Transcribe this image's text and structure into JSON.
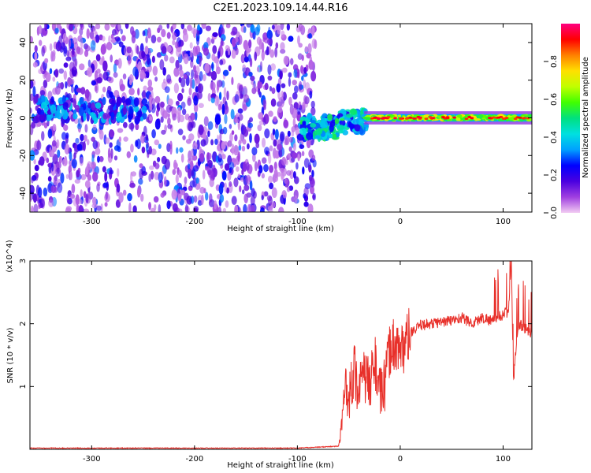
{
  "figure_title": "C2E1.2023.109.14.44.R16",
  "chart_data": [
    {
      "type": "heatmap",
      "xlabel": "Height of straight line (km)",
      "ylabel": "Frequency (Hz)",
      "xlim": [
        -360,
        128
      ],
      "ylim": [
        -50,
        50
      ],
      "x_ticks": [
        -300,
        -200,
        -100,
        0,
        100
      ],
      "y_ticks": [
        -40,
        -20,
        0,
        20,
        40
      ],
      "colorbar": {
        "label": "Normalized spectral amplitude",
        "range": [
          0.0,
          1.0
        ],
        "ticks": [
          0.0,
          0.2,
          0.4,
          0.6,
          0.8
        ],
        "colormap": [
          "#f2ccf2",
          "#a040e0",
          "#4a00e0",
          "#0000ff",
          "#00a0ff",
          "#00e0e0",
          "#00e080",
          "#40ff00",
          "#c0ff00",
          "#ffe000",
          "#ff8000",
          "#ff0000",
          "#ff0080"
        ]
      },
      "regions": [
        {
          "x_range": [
            -360,
            -82
          ],
          "freq_range": [
            -50,
            50
          ],
          "amplitude": "noise 0.0-0.1"
        },
        {
          "x_range": [
            -350,
            -250
          ],
          "freq_center": 4,
          "amplitude": "0.1-0.4"
        },
        {
          "x_range": [
            -95,
            -35
          ],
          "freq_center": -2,
          "amplitude": "0.2-0.5"
        },
        {
          "x_range": [
            -35,
            128
          ],
          "freq_center": 0,
          "amplitude": "0.5-1.0"
        }
      ]
    },
    {
      "type": "line",
      "xlabel": "Height of straight line (km)",
      "ylabel": "SNR (10 * v/v)",
      "y_multiplier": "(x10^4)",
      "xlim": [
        -360,
        128
      ],
      "ylim": [
        0,
        3
      ],
      "x_ticks": [
        -300,
        -200,
        -100,
        0,
        100
      ],
      "y_ticks": [
        1,
        2,
        3
      ],
      "color": "#e8302a",
      "series": [
        {
          "x": [
            -360,
            -300,
            -200,
            -100,
            -60,
            -57,
            -53,
            -50,
            -45,
            -40,
            -35,
            -30,
            -25,
            -20,
            -15,
            -10,
            -5,
            0,
            5,
            10,
            15,
            20,
            30,
            40,
            50,
            60,
            70,
            80,
            90,
            100,
            105,
            108,
            110,
            115,
            120,
            128
          ],
          "y": [
            0.02,
            0.02,
            0.02,
            0.02,
            0.05,
            0.35,
            1.1,
            0.8,
            1.3,
            0.9,
            1.2,
            1.0,
            1.45,
            0.9,
            1.0,
            1.6,
            1.7,
            1.55,
            1.7,
            1.85,
            1.9,
            1.98,
            2.0,
            2.03,
            2.05,
            2.1,
            2.0,
            2.1,
            2.05,
            2.15,
            2.2,
            3.0,
            1.1,
            2.0,
            1.95,
            1.8
          ]
        }
      ]
    }
  ]
}
